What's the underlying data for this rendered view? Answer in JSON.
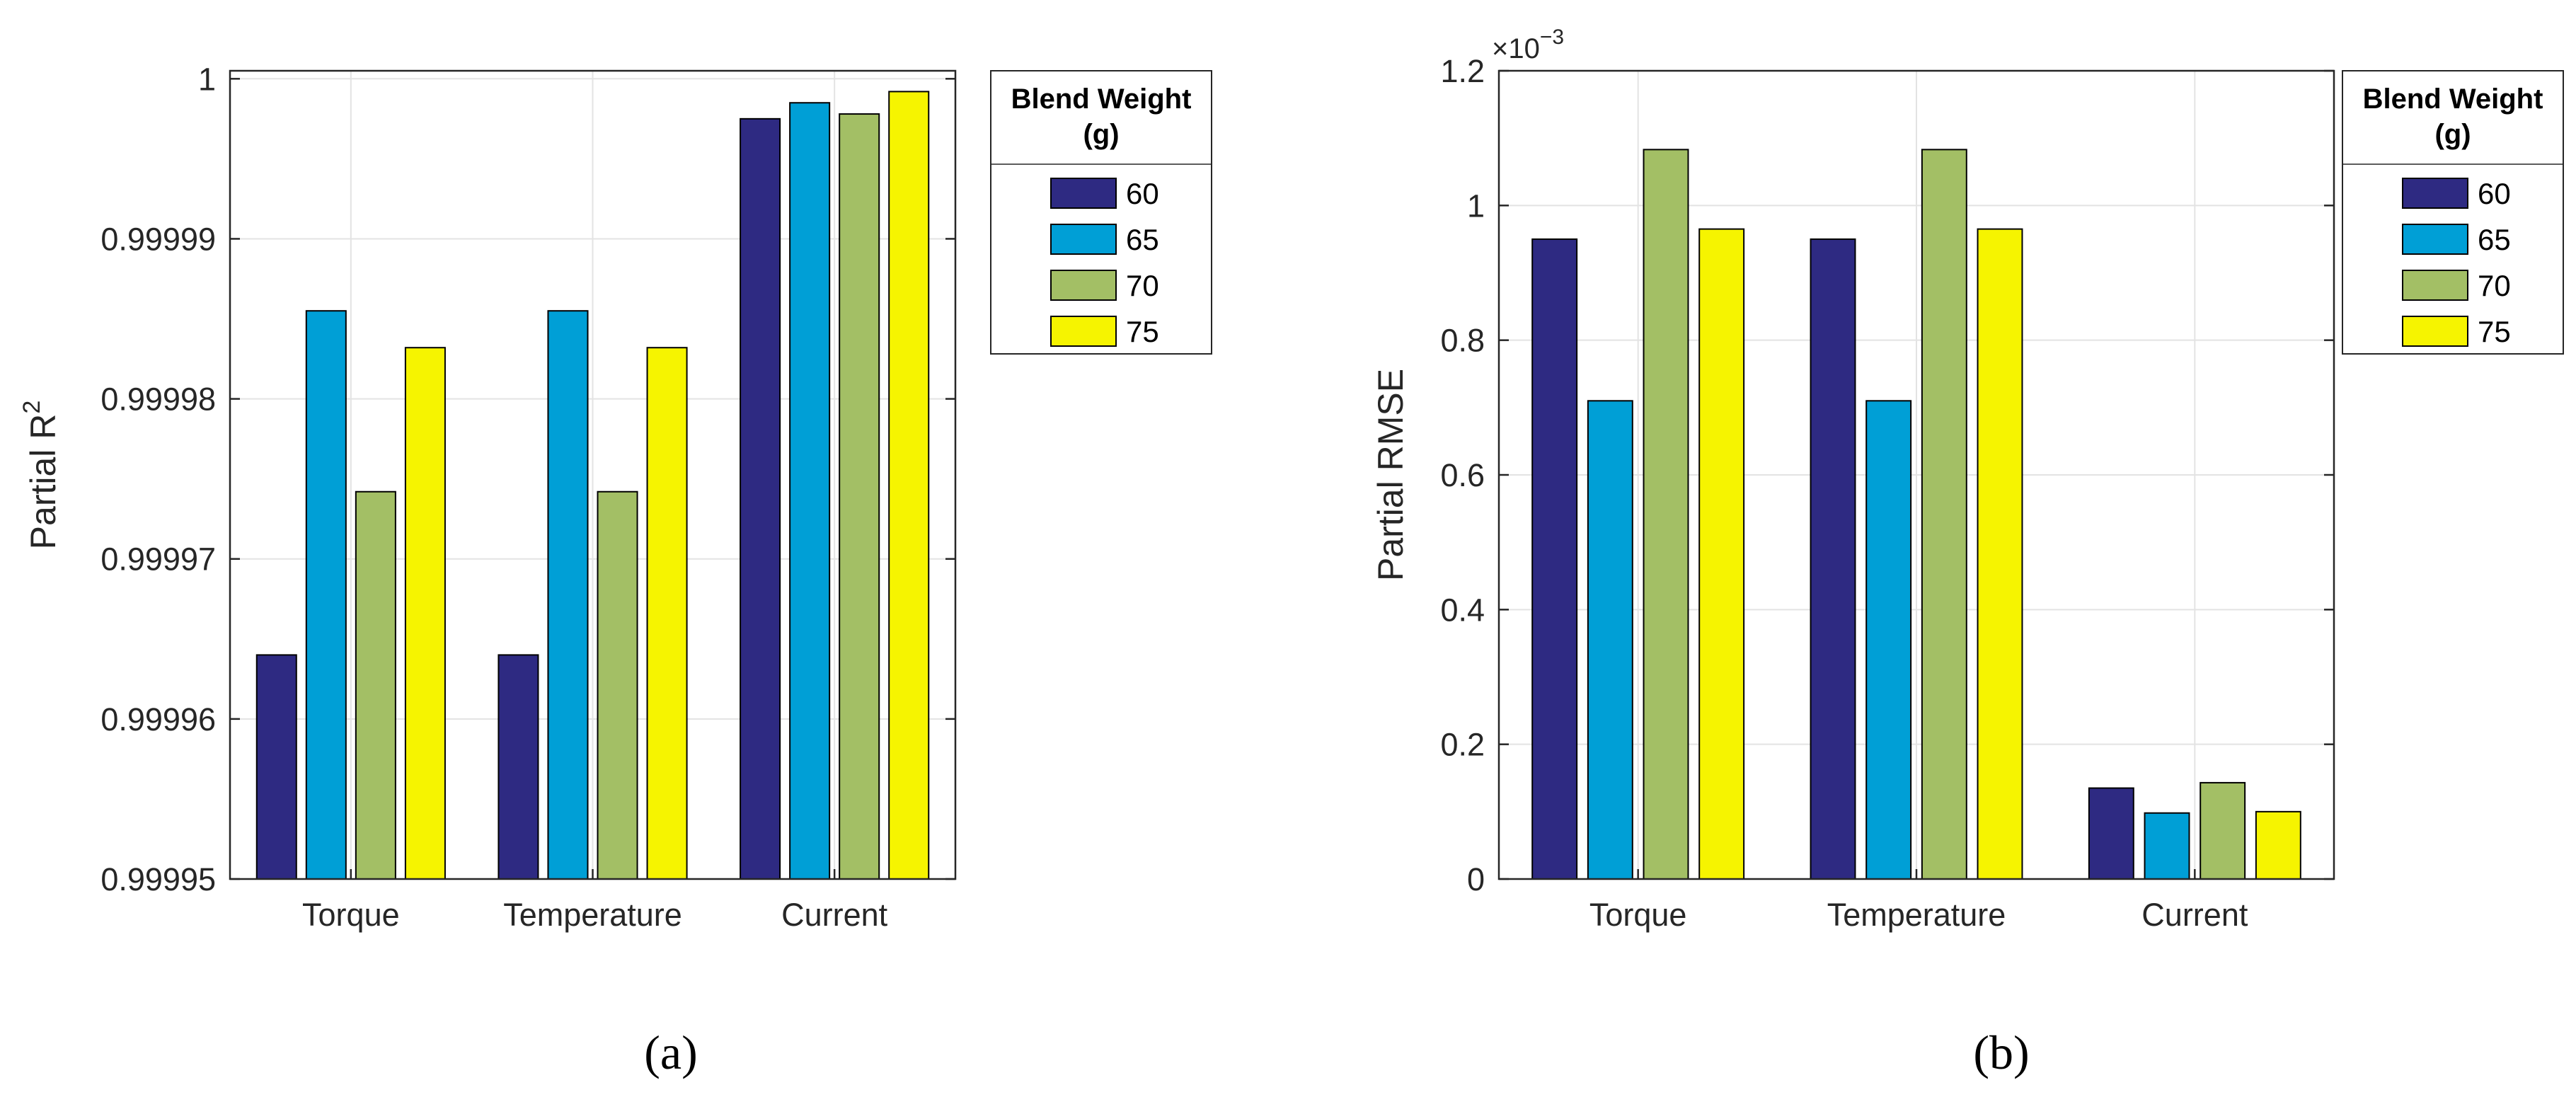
{
  "chart_data": [
    {
      "type": "bar",
      "panel_label": "(a)",
      "categories": [
        "Torque",
        "Temperature",
        "Current"
      ],
      "series": [
        {
          "name": "60",
          "values": [
            0.999964,
            0.999964,
            0.9999975
          ]
        },
        {
          "name": "65",
          "values": [
            0.9999855,
            0.9999855,
            0.9999985
          ]
        },
        {
          "name": "70",
          "values": [
            0.9999742,
            0.9999742,
            0.9999978
          ]
        },
        {
          "name": "75",
          "values": [
            0.9999832,
            0.9999832,
            0.9999992
          ]
        }
      ],
      "ylabel_main": "Partial R",
      "ylabel_sup": "2",
      "ylim": [
        0.99995,
        1.0000005
      ],
      "yticks": [
        "0.99995",
        "0.99996",
        "0.99997",
        "0.99998",
        "0.99999",
        "1"
      ],
      "ytick_values": [
        0.99995,
        0.99996,
        0.99997,
        0.99998,
        0.99999,
        1
      ],
      "grid": true,
      "legend": {
        "title_line1": "Blend Weight",
        "title_line2": "(g)",
        "placement": "outside-right-top"
      }
    },
    {
      "type": "bar",
      "panel_label": "(b)",
      "categories": [
        "Torque",
        "Temperature",
        "Current"
      ],
      "series": [
        {
          "name": "60",
          "values": [
            0.95,
            0.95,
            0.135
          ]
        },
        {
          "name": "65",
          "values": [
            0.71,
            0.71,
            0.098
          ]
        },
        {
          "name": "70",
          "values": [
            1.083,
            1.083,
            0.143
          ]
        },
        {
          "name": "75",
          "values": [
            0.965,
            0.965,
            0.1
          ]
        }
      ],
      "ylabel_main": "Partial RMSE",
      "y_exponent_base": "×10",
      "y_exponent_power": "−3",
      "ylim": [
        0,
        1.2
      ],
      "yticks": [
        "0",
        "0.2",
        "0.4",
        "0.6",
        "0.8",
        "1",
        "1.2"
      ],
      "ytick_values": [
        0,
        0.2,
        0.4,
        0.6,
        0.8,
        1,
        1.2
      ],
      "grid": true,
      "legend": {
        "title_line1": "Blend Weight",
        "title_line2": "(g)",
        "placement": "outside-right-top"
      }
    }
  ],
  "colors": {
    "series": [
      "#2e2a82",
      "#009fd6",
      "#a3bf65",
      "#f6f400"
    ],
    "axis": "#262626",
    "grid": "#e3e3e3"
  }
}
